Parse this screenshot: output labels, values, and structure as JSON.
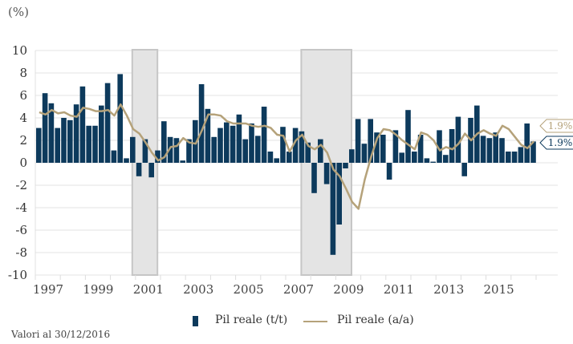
{
  "chart_data": {
    "type": "bar+line",
    "unit_label": "(%)",
    "ylim": [
      -10,
      10
    ],
    "yticks": [
      10,
      8,
      6,
      4,
      2,
      0,
      -2,
      -4,
      -6,
      -8,
      -10
    ],
    "xtick_labels": [
      "1997",
      "1999",
      "2001",
      "2003",
      "2005",
      "2007",
      "2009",
      "2011",
      "2013",
      "2015"
    ],
    "x_start_year": 1997,
    "x_end_year": 2017,
    "grid": true,
    "recession_bands": [
      {
        "start": 2001.0,
        "end": 2001.75
      },
      {
        "start": 2007.75,
        "end": 2009.5
      }
    ],
    "series": [
      {
        "name": "Pil reale (t/t)",
        "type": "bar",
        "color": "#0d3a5c",
        "values": [
          3.1,
          6.2,
          5.3,
          3.1,
          4.0,
          3.8,
          5.2,
          6.8,
          3.3,
          3.3,
          5.1,
          7.1,
          1.1,
          7.9,
          0.4,
          2.3,
          -1.2,
          2.1,
          -1.3,
          1.1,
          3.7,
          2.3,
          2.2,
          0.2,
          2.1,
          3.8,
          7.0,
          4.8,
          2.3,
          3.1,
          3.6,
          3.3,
          4.3,
          2.1,
          3.5,
          2.4,
          5.0,
          1.0,
          0.4,
          3.2,
          1.0,
          3.1,
          2.8,
          1.8,
          -2.7,
          2.1,
          -1.9,
          -8.2,
          -5.5,
          -0.5,
          1.2,
          3.9,
          1.7,
          3.9,
          2.7,
          2.5,
          -1.5,
          2.9,
          0.9,
          4.7,
          1.0,
          2.5,
          0.4,
          0.1,
          2.9,
          0.7,
          3.0,
          4.1,
          -1.2,
          4.0,
          5.1,
          2.4,
          2.2,
          2.7,
          2.2,
          1.0,
          1.0,
          1.4,
          3.5,
          1.9
        ]
      },
      {
        "name": "Pil reale (a/a)",
        "type": "line",
        "color": "#b5a27a",
        "values": [
          4.5,
          4.3,
          4.7,
          4.4,
          4.5,
          4.2,
          4.1,
          4.9,
          4.8,
          4.6,
          4.6,
          4.7,
          4.2,
          5.2,
          4.2,
          3.0,
          2.6,
          1.8,
          0.9,
          0.2,
          0.5,
          1.4,
          1.5,
          2.2,
          1.8,
          1.7,
          2.9,
          4.3,
          4.3,
          4.2,
          3.7,
          3.5,
          3.5,
          3.5,
          3.3,
          3.2,
          3.3,
          3.1,
          2.5,
          2.4,
          1.0,
          2.0,
          2.5,
          1.5,
          1.2,
          1.6,
          0.9,
          -0.6,
          -1.2,
          -2.3,
          -3.5,
          -4.1,
          -1.5,
          0.5,
          2.2,
          3.0,
          2.9,
          2.5,
          2.0,
          1.6,
          1.2,
          2.7,
          2.5,
          2.0,
          1.1,
          1.4,
          1.2,
          1.7,
          2.6,
          2.0,
          2.6,
          2.9,
          2.6,
          2.4,
          3.3,
          3.0,
          2.3,
          1.6,
          1.3,
          1.9
        ]
      }
    ],
    "end_labels": [
      {
        "series": "Pil reale (a/a)",
        "text": "1.9%",
        "color": "#b5a27a"
      },
      {
        "series": "Pil reale (t/t)",
        "text": "1.9%",
        "color": "#0d3a5c"
      }
    ],
    "legend": [
      "Pil reale (t/t)",
      "Pil reale (a/a)"
    ],
    "legend_position": "bottom"
  },
  "note": "Valori al 30/12/2016"
}
